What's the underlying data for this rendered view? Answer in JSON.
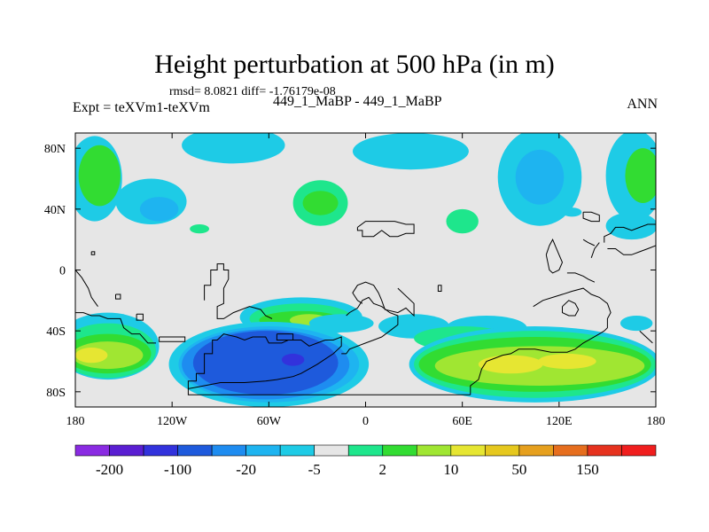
{
  "header": {
    "title": "Height perturbation at 500 hPa (in m)",
    "stats": "rmsd= 8.0821 diff= -1.76179e-08",
    "expt": "Expt = teXVm1-teXVm",
    "runs": "449_1_MaBP - 449_1_MaBP",
    "season": "ANN"
  },
  "chart_data": {
    "type": "heatmap",
    "title": "Height perturbation at 500 hPa (in m)",
    "xlabel": "",
    "ylabel": "",
    "xlim": [
      -180,
      180
    ],
    "ylim": [
      -90,
      90
    ],
    "x_ticks": [
      {
        "value": -180,
        "label": "180"
      },
      {
        "value": -120,
        "label": "120W"
      },
      {
        "value": -60,
        "label": "60W"
      },
      {
        "value": 0,
        "label": "0"
      },
      {
        "value": 60,
        "label": "60E"
      },
      {
        "value": 120,
        "label": "120E"
      },
      {
        "value": 180,
        "label": "180"
      }
    ],
    "y_ticks": [
      {
        "value": 80,
        "label": "80N"
      },
      {
        "value": 40,
        "label": "40N"
      },
      {
        "value": 0,
        "label": "0"
      },
      {
        "value": -40,
        "label": "40S"
      },
      {
        "value": -80,
        "label": "80S"
      }
    ],
    "background_color": "#e6e6e6",
    "colorbar": {
      "colors": [
        "#8a2be2",
        "#5a1ed2",
        "#3232dc",
        "#1e5adc",
        "#1e8cf0",
        "#1eb4f0",
        "#1ecbe6",
        "#e6e6e6",
        "#1ee68c",
        "#32dc32",
        "#a0e632",
        "#e6e632",
        "#e6c81e",
        "#e6a01e",
        "#e66e1e",
        "#e6321e",
        "#f01e1e"
      ],
      "labels": [
        {
          "text": "-200",
          "boundary": 1
        },
        {
          "text": "-100",
          "boundary": 3
        },
        {
          "text": "-20",
          "boundary": 5
        },
        {
          "text": "-5",
          "boundary": 7
        },
        {
          "text": "2",
          "boundary": 9
        },
        {
          "text": "10",
          "boundary": 11
        },
        {
          "text": "50",
          "boundary": 13
        },
        {
          "text": "150",
          "boundary": 15
        }
      ]
    },
    "anomalies": [
      {
        "lon": -168,
        "lat": 60,
        "rx": 17,
        "ry": 28,
        "color": "#1ecbe6"
      },
      {
        "lon": -165,
        "lat": 62,
        "rx": 13,
        "ry": 20,
        "color": "#32dc32"
      },
      {
        "lon": -133,
        "lat": 45,
        "rx": 22,
        "ry": 15,
        "color": "#1ecbe6"
      },
      {
        "lon": -128,
        "lat": 40,
        "rx": 12,
        "ry": 8,
        "color": "#1eb4f0"
      },
      {
        "lon": -82,
        "lat": 82,
        "rx": 32,
        "ry": 12,
        "color": "#1ecbe6"
      },
      {
        "lon": -28,
        "lat": 44,
        "rx": 17,
        "ry": 15,
        "color": "#1ee68c"
      },
      {
        "lon": -28,
        "lat": 44,
        "rx": 11,
        "ry": 8,
        "color": "#32dc32"
      },
      {
        "lon": -103,
        "lat": 27,
        "rx": 6,
        "ry": 3,
        "color": "#1ee68c"
      },
      {
        "lon": 28,
        "lat": 78,
        "rx": 36,
        "ry": 12,
        "color": "#1ecbe6"
      },
      {
        "lon": 60,
        "lat": 32,
        "rx": 10,
        "ry": 8,
        "color": "#1ee68c"
      },
      {
        "lon": 108,
        "lat": 61,
        "rx": 26,
        "ry": 32,
        "color": "#1ecbe6"
      },
      {
        "lon": 108,
        "lat": 61,
        "rx": 15,
        "ry": 18,
        "color": "#1eb4f0"
      },
      {
        "lon": 128,
        "lat": 38,
        "rx": 6,
        "ry": 3,
        "color": "#1ecbe6"
      },
      {
        "lon": 167,
        "lat": 62,
        "rx": 18,
        "ry": 30,
        "color": "#1ecbe6"
      },
      {
        "lon": 172,
        "lat": 62,
        "rx": 11,
        "ry": 18,
        "color": "#32dc32"
      },
      {
        "lon": 165,
        "lat": 29,
        "rx": 16,
        "ry": 9,
        "color": "#1ecbe6"
      },
      {
        "lon": -160,
        "lat": -50,
        "rx": 32,
        "ry": 22,
        "color": "#1ecbe6"
      },
      {
        "lon": -160,
        "lat": -53,
        "rx": 30,
        "ry": 18,
        "color": "#1ee68c"
      },
      {
        "lon": -160,
        "lat": -55,
        "rx": 27,
        "ry": 13,
        "color": "#32dc32"
      },
      {
        "lon": -160,
        "lat": -56,
        "rx": 22,
        "ry": 9,
        "color": "#a0e632"
      },
      {
        "lon": -170,
        "lat": -56,
        "rx": 10,
        "ry": 5,
        "color": "#e6e632"
      },
      {
        "lon": -40,
        "lat": -31,
        "rx": 38,
        "ry": 13,
        "color": "#1ecbe6"
      },
      {
        "lon": -40,
        "lat": -32,
        "rx": 32,
        "ry": 10,
        "color": "#1ee68c"
      },
      {
        "lon": -40,
        "lat": -33,
        "rx": 26,
        "ry": 6,
        "color": "#32dc32"
      },
      {
        "lon": -35,
        "lat": -33,
        "rx": 12,
        "ry": 4,
        "color": "#a0e632"
      },
      {
        "lon": 30,
        "lat": -37,
        "rx": 22,
        "ry": 8,
        "color": "#1ecbe6"
      },
      {
        "lon": -15,
        "lat": -35,
        "rx": 20,
        "ry": 6,
        "color": "#1ecbe6"
      },
      {
        "lon": 75,
        "lat": -38,
        "rx": 25,
        "ry": 8,
        "color": "#1ecbe6"
      },
      {
        "lon": 60,
        "lat": -45,
        "rx": 30,
        "ry": 8,
        "color": "#1ee68c"
      },
      {
        "lon": 168,
        "lat": -35,
        "rx": 10,
        "ry": 5,
        "color": "#1ecbe6"
      },
      {
        "lon": -60,
        "lat": -62,
        "rx": 62,
        "ry": 28,
        "color": "#1ecbe6"
      },
      {
        "lon": -60,
        "lat": -62,
        "rx": 56,
        "ry": 25,
        "color": "#1eb4f0"
      },
      {
        "lon": -62,
        "lat": -62,
        "rx": 52,
        "ry": 23,
        "color": "#1e8cf0"
      },
      {
        "lon": -62,
        "lat": -61,
        "rx": 45,
        "ry": 21,
        "color": "#1e5adc"
      },
      {
        "lon": -45,
        "lat": -59,
        "rx": 7,
        "ry": 4,
        "color": "#3232dc"
      },
      {
        "lon": 105,
        "lat": -62,
        "rx": 78,
        "ry": 25,
        "color": "#1ecbe6"
      },
      {
        "lon": 105,
        "lat": -62,
        "rx": 75,
        "ry": 22,
        "color": "#1ee68c"
      },
      {
        "lon": 105,
        "lat": -62,
        "rx": 72,
        "ry": 18,
        "color": "#32dc32"
      },
      {
        "lon": 108,
        "lat": -63,
        "rx": 65,
        "ry": 13,
        "color": "#a0e632"
      },
      {
        "lon": 90,
        "lat": -62,
        "rx": 20,
        "ry": 6,
        "color": "#e6e632"
      },
      {
        "lon": 125,
        "lat": -60,
        "rx": 18,
        "ry": 5,
        "color": "#e6e632"
      }
    ],
    "coastlines": [
      [
        [
          -180,
          -28
        ],
        [
          -175,
          -28
        ],
        [
          -170,
          -30
        ],
        [
          -165,
          -30
        ],
        [
          -160,
          -32
        ],
        [
          -152,
          -32
        ],
        [
          -150,
          -38
        ],
        [
          -145,
          -42
        ],
        [
          -140,
          -42
        ],
        [
          -135,
          -48
        ],
        [
          -130,
          -48
        ]
      ],
      [
        [
          -170,
          12
        ],
        [
          -168,
          12
        ],
        [
          -168,
          10
        ],
        [
          -170,
          10
        ],
        [
          -170,
          12
        ]
      ],
      [
        [
          -180,
          0
        ],
        [
          -176,
          -5
        ],
        [
          -172,
          -12
        ],
        [
          -170,
          -18
        ],
        [
          -166,
          -24
        ]
      ],
      [
        [
          -155,
          -16
        ],
        [
          -152,
          -16
        ],
        [
          -152,
          -19
        ],
        [
          -155,
          -19
        ],
        [
          -155,
          -16
        ]
      ],
      [
        [
          -142,
          -29
        ],
        [
          -138,
          -29
        ],
        [
          -138,
          -33
        ],
        [
          -142,
          -33
        ],
        [
          -142,
          -29
        ]
      ],
      [
        [
          -128,
          -44
        ],
        [
          -112,
          -44
        ],
        [
          -112,
          -47
        ],
        [
          -128,
          -47
        ],
        [
          -128,
          -44
        ]
      ],
      [
        [
          -110,
          -78
        ],
        [
          -110,
          -73
        ],
        [
          -105,
          -73
        ],
        [
          -105,
          -68
        ],
        [
          -100,
          -68
        ],
        [
          -100,
          -55
        ],
        [
          -95,
          -55
        ],
        [
          -95,
          -46
        ],
        [
          -92,
          -46
        ],
        [
          -88,
          -42
        ],
        [
          -80,
          -44
        ],
        [
          -75,
          -46
        ],
        [
          -70,
          -44
        ],
        [
          -62,
          -44
        ],
        [
          -60,
          -48
        ],
        [
          -52,
          -48
        ],
        [
          -48,
          -46
        ],
        [
          -40,
          -46
        ],
        [
          -35,
          -50
        ],
        [
          -30,
          -48
        ],
        [
          -25,
          -46
        ],
        [
          -20,
          -46
        ],
        [
          -15,
          -44
        ],
        [
          -15,
          -50
        ],
        [
          -20,
          -55
        ],
        [
          -30,
          -62
        ],
        [
          -40,
          -68
        ],
        [
          -45,
          -70
        ],
        [
          -55,
          -72
        ],
        [
          -62,
          -73
        ],
        [
          -75,
          -74
        ],
        [
          -90,
          -74
        ],
        [
          -100,
          -76
        ],
        [
          -105,
          -77
        ],
        [
          -110,
          -78
        ]
      ],
      [
        [
          -110,
          -78
        ],
        [
          -110,
          -82
        ],
        [
          -100,
          -82
        ],
        [
          -20,
          -82
        ],
        [
          -10,
          -82
        ],
        [
          0,
          -82
        ],
        [
          30,
          -82
        ],
        [
          60,
          -82
        ],
        [
          65,
          -82
        ]
      ],
      [
        [
          -55,
          -42
        ],
        [
          -45,
          -42
        ],
        [
          -45,
          -46
        ],
        [
          -55,
          -46
        ],
        [
          -55,
          -42
        ]
      ],
      [
        [
          -100,
          -20
        ],
        [
          -100,
          -10
        ],
        [
          -96,
          -10
        ],
        [
          -96,
          0
        ],
        [
          -92,
          0
        ],
        [
          -92,
          4
        ],
        [
          -88,
          4
        ],
        [
          -88,
          0
        ],
        [
          -85,
          0
        ],
        [
          -85,
          -6
        ],
        [
          -88,
          -12
        ],
        [
          -88,
          -22
        ],
        [
          -92,
          -24
        ],
        [
          -92,
          -32
        ],
        [
          -88,
          -32
        ],
        [
          -82,
          -28
        ],
        [
          -72,
          -24
        ],
        [
          -65,
          -26
        ],
        [
          -62,
          -30
        ],
        [
          -58,
          -32
        ]
      ],
      [
        [
          -15,
          -55
        ],
        [
          -12,
          -55
        ],
        [
          -10,
          -52
        ],
        [
          -5,
          -50
        ],
        [
          0,
          -48
        ],
        [
          5,
          -46
        ],
        [
          10,
          -44
        ],
        [
          15,
          -40
        ],
        [
          20,
          -36
        ],
        [
          20,
          -30
        ],
        [
          15,
          -28
        ],
        [
          10,
          -24
        ],
        [
          5,
          -22
        ],
        [
          2,
          -18
        ],
        [
          -2,
          -20
        ],
        [
          -5,
          -25
        ],
        [
          -10,
          -28
        ],
        [
          -12,
          -30
        ]
      ],
      [
        [
          -2,
          -22
        ],
        [
          -5,
          -20
        ],
        [
          -8,
          -15
        ],
        [
          -5,
          -10
        ],
        [
          0,
          -8
        ],
        [
          5,
          -10
        ],
        [
          8,
          -15
        ],
        [
          10,
          -20
        ],
        [
          12,
          -26
        ],
        [
          20,
          -28
        ],
        [
          25,
          -25
        ],
        [
          28,
          -28
        ],
        [
          30,
          -30
        ],
        [
          30,
          -22
        ],
        [
          20,
          -12
        ]
      ],
      [
        [
          -5,
          28
        ],
        [
          -5,
          26
        ],
        [
          -2,
          26
        ],
        [
          -2,
          22
        ],
        [
          5,
          22
        ],
        [
          10,
          26
        ],
        [
          15,
          22
        ],
        [
          20,
          22
        ],
        [
          25,
          24
        ],
        [
          30,
          24
        ],
        [
          30,
          30
        ],
        [
          25,
          30
        ],
        [
          18,
          32
        ],
        [
          10,
          32
        ],
        [
          0,
          32
        ],
        [
          -5,
          28
        ]
      ],
      [
        [
          45,
          -10
        ],
        [
          47,
          -10
        ],
        [
          47,
          -14
        ],
        [
          45,
          -14
        ],
        [
          45,
          -10
        ]
      ],
      [
        [
          65,
          -82
        ],
        [
          65,
          -76
        ],
        [
          70,
          -72
        ],
        [
          72,
          -65
        ],
        [
          75,
          -60
        ],
        [
          80,
          -58
        ],
        [
          85,
          -56
        ],
        [
          90,
          -55
        ],
        [
          95,
          -52
        ],
        [
          105,
          -52
        ],
        [
          115,
          -54
        ],
        [
          125,
          -54
        ],
        [
          130,
          -52
        ],
        [
          135,
          -48
        ],
        [
          140,
          -45
        ],
        [
          145,
          -42
        ],
        [
          148,
          -40
        ],
        [
          150,
          -38
        ],
        [
          150,
          -32
        ],
        [
          152,
          -28
        ],
        [
          150,
          -22
        ],
        [
          145,
          -18
        ],
        [
          140,
          -16
        ],
        [
          135,
          -12
        ],
        [
          128,
          -14
        ],
        [
          122,
          -16
        ],
        [
          116,
          -18
        ],
        [
          110,
          -20
        ],
        [
          104,
          -24
        ]
      ],
      [
        [
          135,
          38
        ],
        [
          140,
          38
        ],
        [
          145,
          36
        ],
        [
          145,
          32
        ],
        [
          140,
          32
        ],
        [
          135,
          34
        ],
        [
          135,
          38
        ]
      ],
      [
        [
          112,
          10
        ],
        [
          114,
          16
        ],
        [
          116,
          20
        ],
        [
          118,
          15
        ],
        [
          120,
          10
        ],
        [
          122,
          5
        ],
        [
          120,
          0
        ],
        [
          116,
          -2
        ],
        [
          114,
          0
        ],
        [
          112,
          10
        ]
      ],
      [
        [
          122,
          -24
        ],
        [
          122,
          -28
        ],
        [
          126,
          -30
        ],
        [
          130,
          -30
        ],
        [
          132,
          -26
        ],
        [
          130,
          -22
        ],
        [
          126,
          -20
        ],
        [
          122,
          -24
        ]
      ],
      [
        [
          148,
          18
        ],
        [
          148,
          22
        ],
        [
          152,
          24
        ],
        [
          155,
          28
        ],
        [
          160,
          28
        ],
        [
          165,
          26
        ],
        [
          170,
          28
        ],
        [
          175,
          30
        ],
        [
          180,
          30
        ]
      ],
      [
        [
          140,
          8
        ],
        [
          142,
          14
        ],
        [
          145,
          18
        ]
      ],
      [
        [
          150,
          14
        ],
        [
          155,
          14
        ],
        [
          160,
          10
        ],
        [
          165,
          10
        ],
        [
          170,
          12
        ],
        [
          175,
          14
        ],
        [
          180,
          16
        ]
      ],
      [
        [
          125,
          -2
        ],
        [
          130,
          -2
        ],
        [
          135,
          -4
        ],
        [
          138,
          -6
        ],
        [
          142,
          -8
        ]
      ],
      [
        [
          170,
          -40
        ],
        [
          175,
          -45
        ],
        [
          178,
          -48
        ]
      ],
      [
        [
          135,
          20
        ],
        [
          138,
          18
        ],
        [
          142,
          16
        ]
      ]
    ]
  }
}
